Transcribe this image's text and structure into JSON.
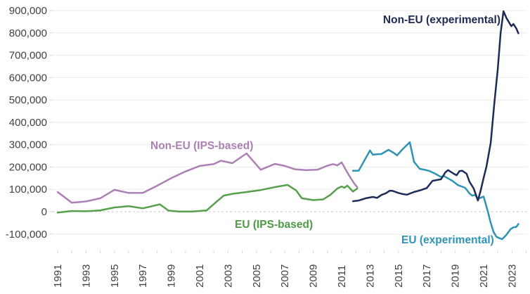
{
  "chart_data": {
    "type": "line",
    "title": "",
    "xlabel": "",
    "ylabel": "",
    "ylim": [
      -100000,
      900000
    ],
    "xlim": [
      1991,
      2023.5
    ],
    "grid": "horizontal gridlines on; zero line dashed; no legend box (inline series labels)",
    "legend_position": "inline-annotations",
    "colors": {
      "background": "#ffffff",
      "gridline": "#ebebeb",
      "zero_line": "#c9c9c9",
      "minor_tick": "#d9d9d9",
      "axis_text": "#414042",
      "non_eu_experimental": "#1d2b57",
      "eu_experimental": "#2f93b3",
      "non_eu_ips": "#ad80b5",
      "eu_ips": "#56a04b"
    },
    "y_axis": {
      "ticks": [
        {
          "value": 900000,
          "label": "900,000"
        },
        {
          "value": 800000,
          "label": "800,000"
        },
        {
          "value": 700000,
          "label": "700,000"
        },
        {
          "value": 600000,
          "label": "600,000"
        },
        {
          "value": 500000,
          "label": "500,000"
        },
        {
          "value": 400000,
          "label": "400,000"
        },
        {
          "value": 300000,
          "label": "300,000"
        },
        {
          "value": 200000,
          "label": "200,000"
        },
        {
          "value": 100000,
          "label": "100,000"
        },
        {
          "value": 0,
          "label": "0"
        },
        {
          "value": -100000,
          "label": "-100,000"
        }
      ]
    },
    "x_axis": {
      "ticks": [
        {
          "value": 1991,
          "label": "1991"
        },
        {
          "value": 1993,
          "label": "1993"
        },
        {
          "value": 1995,
          "label": "1995"
        },
        {
          "value": 1997,
          "label": "1997"
        },
        {
          "value": 1999,
          "label": "1999"
        },
        {
          "value": 2001,
          "label": "2001"
        },
        {
          "value": 2003,
          "label": "2003"
        },
        {
          "value": 2005,
          "label": "2005"
        },
        {
          "value": 2007,
          "label": "2007"
        },
        {
          "value": 2009,
          "label": "2009"
        },
        {
          "value": 2011,
          "label": "2011"
        },
        {
          "value": 2013,
          "label": "2013"
        },
        {
          "value": 2015,
          "label": "2015"
        },
        {
          "value": 2017,
          "label": "2017"
        },
        {
          "value": 2019,
          "label": "2019"
        },
        {
          "value": 2021,
          "label": "2021"
        },
        {
          "value": 2023,
          "label": "2023"
        }
      ],
      "minor_tick_range": [
        1991,
        2024
      ],
      "minor_tick_step": 1
    },
    "series": [
      {
        "id": "non-eu-ips",
        "name": "Non-EU (IPS-based)",
        "color": "#ad80b5",
        "points": [
          [
            1991.0,
            88000
          ],
          [
            1992.0,
            40000
          ],
          [
            1993.0,
            46000
          ],
          [
            1994.0,
            60000
          ],
          [
            1995.0,
            98000
          ],
          [
            1996.0,
            84000
          ],
          [
            1997.0,
            84000
          ],
          [
            1998.0,
            116000
          ],
          [
            1999.0,
            150000
          ],
          [
            2000.0,
            180000
          ],
          [
            2001.0,
            205000
          ],
          [
            2002.0,
            213000
          ],
          [
            2002.5,
            228000
          ],
          [
            2003.3,
            217000
          ],
          [
            2004.3,
            261000
          ],
          [
            2005.3,
            188000
          ],
          [
            2006.3,
            214000
          ],
          [
            2007.0,
            205000
          ],
          [
            2007.7,
            190000
          ],
          [
            2008.5,
            186000
          ],
          [
            2009.3,
            188000
          ],
          [
            2010.0,
            206000
          ],
          [
            2010.4,
            213000
          ],
          [
            2010.7,
            207000
          ],
          [
            2011.0,
            221000
          ],
          [
            2011.5,
            165000
          ],
          [
            2011.9,
            125000
          ],
          [
            2012.1,
            110000
          ]
        ]
      },
      {
        "id": "eu-ips",
        "name": "EU (IPS-based)",
        "color": "#56a04b",
        "points": [
          [
            1991.0,
            -4000
          ],
          [
            1992.0,
            3000
          ],
          [
            1993.0,
            2000
          ],
          [
            1994.0,
            6000
          ],
          [
            1995.0,
            19000
          ],
          [
            1996.0,
            25000
          ],
          [
            1997.0,
            15000
          ],
          [
            1998.2,
            33000
          ],
          [
            1998.8,
            5000
          ],
          [
            1999.5,
            1000
          ],
          [
            2000.5,
            1000
          ],
          [
            2001.5,
            6000
          ],
          [
            2002.2,
            45000
          ],
          [
            2002.7,
            72000
          ],
          [
            2003.3,
            80000
          ],
          [
            2004.3,
            88000
          ],
          [
            2005.3,
            97000
          ],
          [
            2006.3,
            110000
          ],
          [
            2007.2,
            120000
          ],
          [
            2007.8,
            95000
          ],
          [
            2008.2,
            60000
          ],
          [
            2009.0,
            52000
          ],
          [
            2009.7,
            55000
          ],
          [
            2010.2,
            75000
          ],
          [
            2010.7,
            104000
          ],
          [
            2011.0,
            113000
          ],
          [
            2011.2,
            107000
          ],
          [
            2011.4,
            117000
          ],
          [
            2011.8,
            90000
          ],
          [
            2012.1,
            104000
          ]
        ]
      },
      {
        "id": "eu-experimental",
        "name": "EU (experimental)",
        "color": "#2f93b3",
        "points": [
          [
            2011.8,
            183000
          ],
          [
            2012.2,
            183000
          ],
          [
            2013.0,
            274000
          ],
          [
            2013.2,
            255000
          ],
          [
            2013.5,
            257000
          ],
          [
            2013.8,
            258000
          ],
          [
            2014.3,
            277000
          ],
          [
            2014.7,
            262000
          ],
          [
            2014.9,
            252000
          ],
          [
            2015.3,
            280000
          ],
          [
            2015.8,
            311000
          ],
          [
            2016.1,
            223000
          ],
          [
            2016.5,
            192000
          ],
          [
            2016.9,
            187000
          ],
          [
            2017.2,
            182000
          ],
          [
            2017.6,
            170000
          ],
          [
            2018.0,
            155000
          ],
          [
            2018.2,
            160000
          ],
          [
            2018.8,
            138000
          ],
          [
            2019.2,
            119000
          ],
          [
            2019.7,
            107000
          ],
          [
            2020.0,
            82000
          ],
          [
            2020.2,
            72000
          ],
          [
            2020.4,
            75000
          ],
          [
            2020.6,
            57000
          ],
          [
            2021.0,
            68000
          ],
          [
            2021.3,
            0
          ],
          [
            2021.5,
            -50000
          ],
          [
            2021.7,
            -90000
          ],
          [
            2021.9,
            -112000
          ],
          [
            2022.1,
            -118000
          ],
          [
            2022.3,
            -123000
          ],
          [
            2022.6,
            -104000
          ],
          [
            2022.9,
            -78000
          ],
          [
            2023.1,
            -70000
          ],
          [
            2023.3,
            -68000
          ],
          [
            2023.45,
            -55000
          ]
        ]
      },
      {
        "id": "non-eu-experimental",
        "name": "Non-EU (experimental)",
        "color": "#1d2b57",
        "points": [
          [
            2011.8,
            47000
          ],
          [
            2012.2,
            50000
          ],
          [
            2012.7,
            60000
          ],
          [
            2013.2,
            66000
          ],
          [
            2013.5,
            62000
          ],
          [
            2013.8,
            75000
          ],
          [
            2014.1,
            82000
          ],
          [
            2014.4,
            94000
          ],
          [
            2014.6,
            93000
          ],
          [
            2015.0,
            84000
          ],
          [
            2015.3,
            79000
          ],
          [
            2015.6,
            76000
          ],
          [
            2016.1,
            88000
          ],
          [
            2016.6,
            97000
          ],
          [
            2017.0,
            106000
          ],
          [
            2017.4,
            138000
          ],
          [
            2018.0,
            145000
          ],
          [
            2018.3,
            176000
          ],
          [
            2018.5,
            186000
          ],
          [
            2018.9,
            170000
          ],
          [
            2019.1,
            163000
          ],
          [
            2019.3,
            182000
          ],
          [
            2019.5,
            183000
          ],
          [
            2019.8,
            170000
          ],
          [
            2020.0,
            135000
          ],
          [
            2020.3,
            104000
          ],
          [
            2020.6,
            50000
          ],
          [
            2020.8,
            97000
          ],
          [
            2021.0,
            151000
          ],
          [
            2021.2,
            201000
          ],
          [
            2021.35,
            255000
          ],
          [
            2021.5,
            308000
          ],
          [
            2021.75,
            480000
          ],
          [
            2022.0,
            640000
          ],
          [
            2022.2,
            800000
          ],
          [
            2022.4,
            897000
          ],
          [
            2022.6,
            868000
          ],
          [
            2022.8,
            846000
          ],
          [
            2022.95,
            830000
          ],
          [
            2023.1,
            840000
          ],
          [
            2023.3,
            820000
          ],
          [
            2023.45,
            798000
          ]
        ]
      }
    ],
    "annotations": [
      {
        "id": "non-eu-ips",
        "text": "Non-EU (IPS-based)",
        "color": "#ad80b5",
        "px": [
          214,
          212
        ],
        "anchor": "start"
      },
      {
        "id": "eu-ips",
        "text": "EU (IPS-based)",
        "color": "#4e9a47",
        "px": [
          334,
          324
        ],
        "anchor": "start"
      },
      {
        "id": "non-eu-experimental",
        "text": "Non-EU (experimental)",
        "color": "#1d2b57",
        "px": [
          712,
          33
        ],
        "anchor": "end"
      },
      {
        "id": "eu-experimental",
        "text": "EU (experimental)",
        "color": "#2f93b3",
        "px": [
          571,
          346
        ],
        "anchor": "start"
      }
    ]
  }
}
